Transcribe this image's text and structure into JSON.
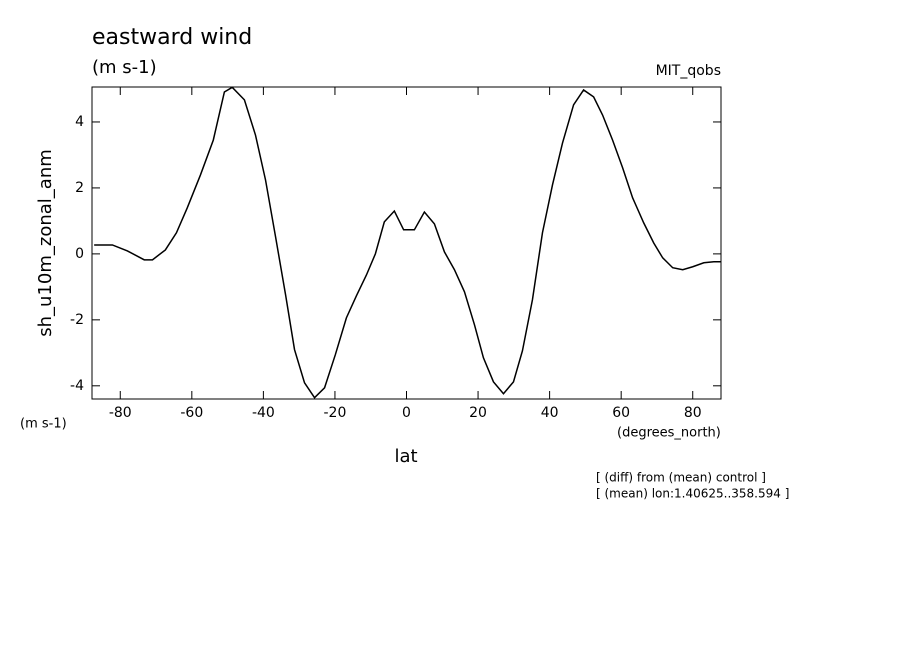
{
  "chart_data": {
    "type": "line",
    "title": "eastward wind",
    "subtitle": "(m s-1)",
    "dataset": "MIT_qobs",
    "y_label": "sh_u10m_zonal_anm",
    "y_units": "(m s-1)",
    "x_label": "lat",
    "x_units": "(degrees_north)",
    "notes": [
      "[ (diff) from (mean) control ]",
      "[ (mean) lon:1.40625..358.594 ]"
    ],
    "xlim": [
      -87.9,
      87.9
    ],
    "ylim": [
      -4.4,
      5.06
    ],
    "xticks": [
      -80,
      -60,
      -40,
      -20,
      0,
      20,
      40,
      60,
      80
    ],
    "yticks": [
      -4,
      -2,
      0,
      2,
      4
    ],
    "x": [
      -87.3,
      -82.2,
      -78,
      -73.3,
      -71,
      -67.4,
      -64.3,
      -61.3,
      -57.6,
      -54,
      -50.9,
      -48.7,
      -45.3,
      -42.2,
      -39.4,
      -36.6,
      -33.8,
      -31.3,
      -28.5,
      -25.7,
      -22.9,
      -19.9,
      -16.8,
      -14,
      -11.2,
      -8.7,
      -6.2,
      -3.4,
      -0.8,
      2.2,
      5,
      7.8,
      10.6,
      13.4,
      16.2,
      19,
      21.5,
      24.3,
      27.1,
      29.9,
      32.4,
      35.2,
      38,
      40.8,
      43.6,
      46.7,
      49.5,
      52.3,
      54.8,
      57.6,
      60.4,
      63.2,
      66.3,
      69.1,
      71.6,
      74.4,
      77.2,
      80,
      83.1,
      85.9,
      87.9
    ],
    "series": [
      {
        "color": "#000000",
        "values": [
          0.27,
          0.27,
          0.09,
          -0.18,
          -0.18,
          0.12,
          0.64,
          1.39,
          2.39,
          3.45,
          4.91,
          5.05,
          4.67,
          3.6,
          2.24,
          0.52,
          -1.24,
          -2.9,
          -3.91,
          -4.36,
          -4.06,
          -3.06,
          -1.94,
          -1.27,
          -0.64,
          0,
          0.97,
          1.3,
          0.73,
          0.73,
          1.27,
          0.91,
          0.06,
          -0.48,
          -1.15,
          -2.15,
          -3.15,
          -3.88,
          -4.24,
          -3.88,
          -2.94,
          -1.39,
          0.64,
          2.09,
          3.36,
          4.52,
          4.97,
          4.76,
          4.21,
          3.45,
          2.61,
          1.7,
          0.94,
          0.33,
          -0.12,
          -0.42,
          -0.48,
          -0.39,
          -0.27,
          -0.24,
          -0.24
        ]
      }
    ]
  }
}
